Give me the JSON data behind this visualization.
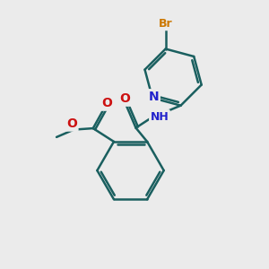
{
  "background_color": "#ebebeb",
  "atom_colors": {
    "C": "#1a5f5f",
    "N": "#2222cc",
    "O": "#cc1111",
    "Br": "#cc7700",
    "H": "#888888"
  },
  "bond_color": "#1a5f5f",
  "bond_width": 1.8,
  "figsize": [
    3.0,
    3.0
  ],
  "dpi": 100
}
